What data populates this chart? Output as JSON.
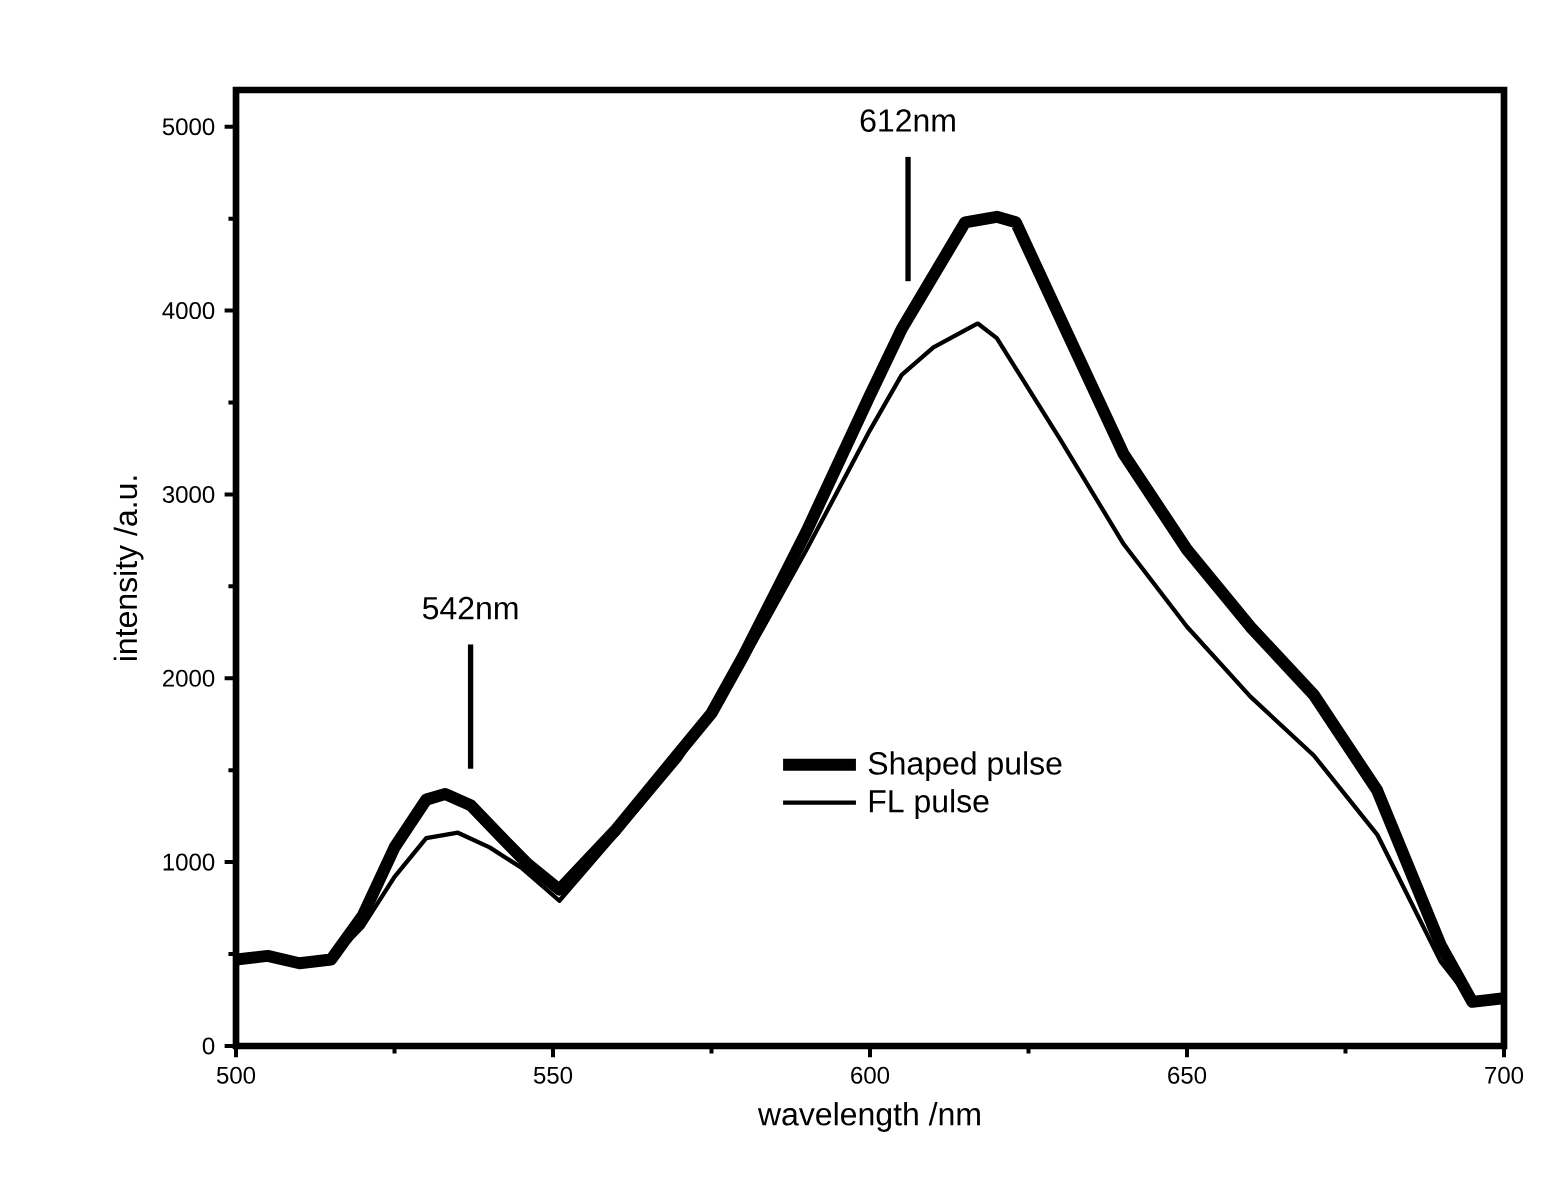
{
  "chart_data": {
    "type": "line",
    "xlabel": "wavelength /nm",
    "ylabel": "intensity /a.u.",
    "xlim": [
      500,
      700
    ],
    "xticks": [
      500,
      550,
      600,
      650,
      700
    ],
    "ylim": [
      0,
      5200
    ],
    "yticks": [
      0,
      1000,
      2000,
      3000,
      4000,
      5000
    ],
    "legend": "right",
    "grid": false,
    "marker": "none",
    "line_style": "solid",
    "annotations": [
      "542nm",
      "612nm"
    ],
    "series": [
      {
        "name": "Shaped pulse",
        "color": "#000000",
        "x": [
          500,
          505,
          510,
          515,
          520,
          525,
          530,
          533,
          537,
          542,
          546,
          551,
          560,
          570,
          575,
          580,
          590,
          600,
          605,
          610,
          615,
          620,
          623,
          630,
          640,
          650,
          660,
          670,
          680,
          690,
          695,
          700
        ],
        "values": [
          470,
          490,
          450,
          470,
          710,
          1080,
          1340,
          1370,
          1310,
          1130,
          990,
          850,
          1180,
          1600,
          1810,
          2120,
          2800,
          3540,
          3900,
          4190,
          4480,
          4510,
          4480,
          3960,
          3220,
          2700,
          2280,
          1910,
          1390,
          550,
          240,
          260
        ]
      },
      {
        "name": "FL pulse",
        "color": "#000000",
        "x": [
          500,
          505,
          510,
          515,
          520,
          525,
          530,
          535,
          540,
          545,
          551,
          560,
          570,
          580,
          590,
          600,
          605,
          610,
          617,
          620,
          630,
          640,
          650,
          660,
          670,
          680,
          690,
          695,
          700
        ],
        "values": [
          470,
          490,
          450,
          470,
          650,
          920,
          1130,
          1160,
          1080,
          970,
          790,
          1150,
          1560,
          2080,
          2700,
          3350,
          3650,
          3800,
          3930,
          3850,
          3300,
          2730,
          2280,
          1900,
          1580,
          1150,
          460,
          240,
          250
        ]
      }
    ]
  }
}
